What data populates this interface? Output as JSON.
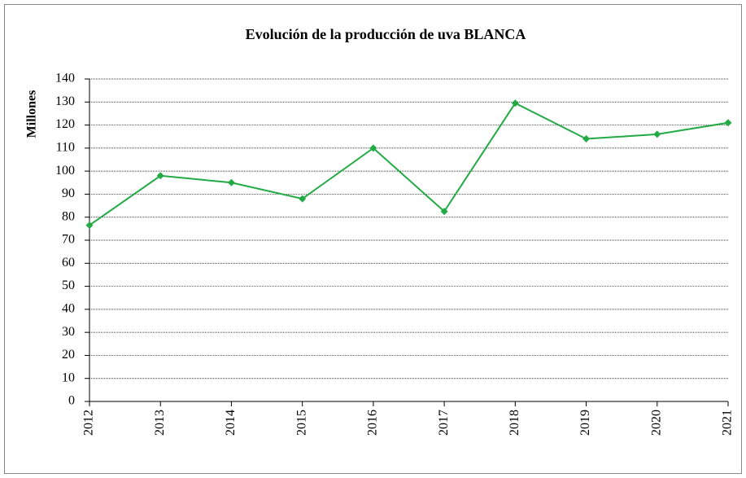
{
  "chart_data": {
    "type": "line",
    "title": "Evolución de la producción de uva BLANCA",
    "y_label": "Millones",
    "categories": [
      "2012",
      "2013",
      "2014",
      "2015",
      "2016",
      "2017",
      "2018",
      "2019",
      "2020",
      "2021"
    ],
    "series": [
      {
        "name": "BLANCA",
        "color": "#22aa44",
        "values": [
          76.5,
          98,
          95,
          88,
          110,
          82.5,
          129.5,
          114,
          116,
          121
        ]
      }
    ],
    "ylim": [
      0,
      140
    ],
    "yticks": [
      0,
      10,
      20,
      30,
      40,
      50,
      60,
      70,
      80,
      90,
      100,
      110,
      120,
      130,
      140
    ],
    "grid": true
  }
}
